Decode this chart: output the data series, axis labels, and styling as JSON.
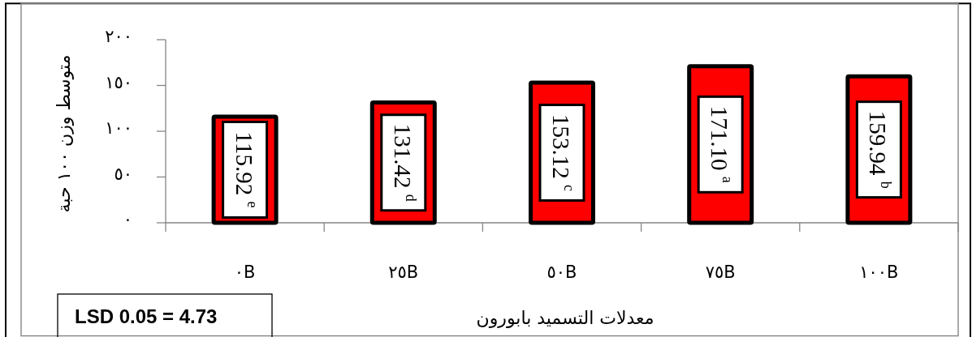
{
  "chart_data": {
    "type": "bar",
    "categories": [
      "٠B",
      "٢٥B",
      "٥٠B",
      "٧٥B",
      "١٠٠B"
    ],
    "values": [
      115.92,
      131.42,
      153.12,
      171.1,
      159.94
    ],
    "color": "#ff0000",
    "value_labels": [
      "115.92 $^{e}$",
      "131.42 $^{d}$",
      "153.12 $^{c}$",
      "171.10 $^{a}$",
      "159.94 $^{b}$"
    ],
    "xlabel": "معدلات التسميد بابورون",
    "ylabel": "متوسط وزن ١٠٠ حبة",
    "ylim": [
      0,
      200
    ],
    "yticks": [
      {
        "value": 0,
        "label": "٠"
      },
      {
        "value": 50,
        "label": "٥٠"
      },
      {
        "value": 100,
        "label": "١٠٠"
      },
      {
        "value": 150,
        "label": "١٥٠"
      },
      {
        "value": 200,
        "label": "٢٠٠"
      }
    ],
    "annotations": [
      "LSD 0.05 = 4.73"
    ]
  }
}
